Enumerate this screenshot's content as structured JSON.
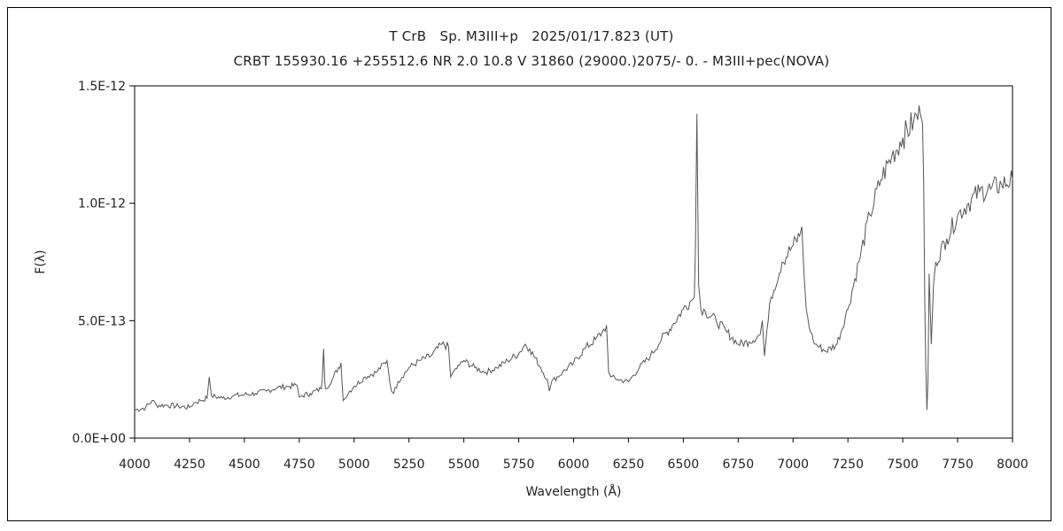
{
  "title_line1": "T CrB　Sp. M3III+p　2025/01/17.823 (UT)",
  "title_line2": "CRBT 155930.16 +255512.6 NR 2.0 10.8 V 31860 (29000.)2075/- 0. - M3III+pec(NOVA)",
  "chart_data": {
    "type": "line",
    "xlabel": "Wavelength (Å)",
    "ylabel": "F(λ)",
    "xlim": [
      4000,
      8000
    ],
    "ylim": [
      0,
      1.5e-12
    ],
    "grid": false,
    "x_ticks": [
      4000,
      4250,
      4500,
      4750,
      5000,
      5250,
      5500,
      5750,
      6000,
      6250,
      6500,
      6750,
      7000,
      7250,
      7500,
      7750,
      8000
    ],
    "x_tick_labels": [
      "4000",
      "4250",
      "4500",
      "4750",
      "5000",
      "5250",
      "5500",
      "5750",
      "6000",
      "6250",
      "6500",
      "6750",
      "7000",
      "7250",
      "7500",
      "7750",
      "8000"
    ],
    "y_ticks": [
      0,
      5e-13,
      1e-12,
      1.5e-12
    ],
    "y_tick_labels": [
      "0.0E+00",
      "5.0E-13",
      "1.0E-12",
      "1.5E-12"
    ],
    "line_color": "#555555",
    "series": [
      {
        "x": [
          4000,
          4050,
          4080,
          4100,
          4150,
          4200,
          4250,
          4270,
          4300,
          4330,
          4340,
          4350,
          4400,
          4450,
          4500,
          4550,
          4600,
          4650,
          4700,
          4740,
          4750,
          4760,
          4800,
          4850,
          4855,
          4861,
          4866,
          4870,
          4900,
          4940,
          4950,
          4960,
          4980,
          5000,
          5050,
          5100,
          5150,
          5170,
          5180,
          5200,
          5250,
          5300,
          5350,
          5400,
          5430,
          5440,
          5450,
          5480,
          5500,
          5550,
          5600,
          5650,
          5700,
          5750,
          5780,
          5800,
          5850,
          5880,
          5890,
          5900,
          5950,
          6000,
          6050,
          6100,
          6130,
          6150,
          6160,
          6170,
          6200,
          6250,
          6300,
          6350,
          6400,
          6450,
          6500,
          6530,
          6550,
          6555,
          6562,
          6570,
          6580,
          6600,
          6650,
          6700,
          6750,
          6800,
          6850,
          6860,
          6870,
          6880,
          6900,
          6950,
          7000,
          7030,
          7040,
          7050,
          7060,
          7080,
          7100,
          7150,
          7200,
          7250,
          7300,
          7350,
          7400,
          7450,
          7500,
          7550,
          7580,
          7590,
          7595,
          7600,
          7605,
          7610,
          7615,
          7620,
          7630,
          7640,
          7650,
          7700,
          7750,
          7800,
          7850,
          7900,
          7950,
          8000
        ],
        "y": [
          1.2e-13,
          1.3e-13,
          1.6e-13,
          1.4e-13,
          1.4e-13,
          1.35e-13,
          1.3e-13,
          1.5e-13,
          1.6e-13,
          1.7e-13,
          2.6e-13,
          1.8e-13,
          1.7e-13,
          1.8e-13,
          1.85e-13,
          1.9e-13,
          2e-13,
          2.15e-13,
          2.2e-13,
          2.25e-13,
          1.75e-13,
          1.8e-13,
          1.9e-13,
          2.1e-13,
          2.5e-13,
          3.8e-13,
          2.4e-13,
          2.1e-13,
          2.5e-13,
          3.2e-13,
          1.6e-13,
          1.7e-13,
          2e-13,
          2.2e-13,
          2.6e-13,
          2.8e-13,
          3.3e-13,
          2e-13,
          1.9e-13,
          2.4e-13,
          3e-13,
          3.3e-13,
          3.5e-13,
          4e-13,
          3.9e-13,
          2.6e-13,
          2.8e-13,
          3.1e-13,
          3.3e-13,
          3e-13,
          2.8e-13,
          3e-13,
          3.3e-13,
          3.6e-13,
          4e-13,
          3.8e-13,
          3e-13,
          2.5e-13,
          2e-13,
          2.4e-13,
          2.8e-13,
          3.2e-13,
          3.8e-13,
          4.2e-13,
          4.5e-13,
          4.8e-13,
          2.8e-13,
          2.6e-13,
          2.5e-13,
          2.4e-13,
          3e-13,
          3.5e-13,
          4.2e-13,
          4.8e-13,
          5.5e-13,
          5.8e-13,
          6e-13,
          8e-13,
          1.38e-12,
          6.5e-13,
          5.5e-13,
          5.4e-13,
          5e-13,
          4.5e-13,
          4e-13,
          4.1e-13,
          4.4e-13,
          5e-13,
          3.5e-13,
          4.5e-13,
          6e-13,
          7.5e-13,
          8.2e-13,
          8.6e-13,
          9e-13,
          7e-13,
          5.5e-13,
          4.5e-13,
          4e-13,
          3.7e-13,
          4e-13,
          5.5e-13,
          7.5e-13,
          9.5e-13,
          1.1e-12,
          1.2e-12,
          1.28e-12,
          1.35e-12,
          1.38e-12,
          1.34e-12,
          1.1e-12,
          6e-13,
          3e-13,
          1.2e-13,
          2.5e-13,
          7e-13,
          4e-13,
          6.5e-13,
          7.5e-13,
          8.5e-13,
          9.5e-13,
          1e-12,
          1.05e-12,
          1.06e-12,
          1.08e-12,
          1.1e-12
        ]
      }
    ]
  }
}
